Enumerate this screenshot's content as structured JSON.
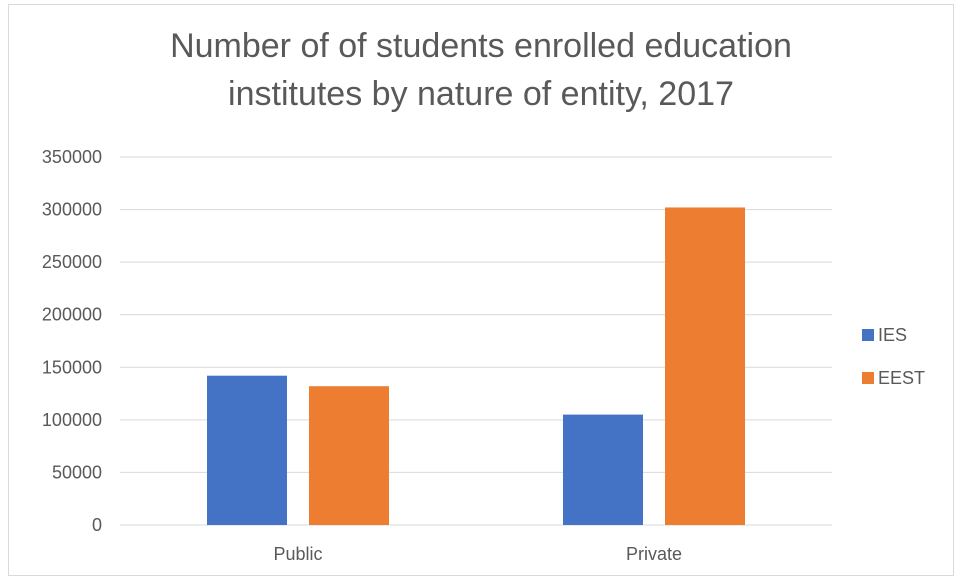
{
  "chart_data": {
    "type": "bar",
    "title_lines": [
      "Number of of students enrolled education",
      "institutes by nature of entity, 2017"
    ],
    "categories": [
      "Public",
      "Private"
    ],
    "series": [
      {
        "name": "IES",
        "values": [
          142000,
          105000
        ],
        "color": "#4472C4"
      },
      {
        "name": "EEST",
        "values": [
          132000,
          302000
        ],
        "color": "#ED7D31"
      }
    ],
    "ylim": [
      0,
      350000
    ],
    "yticks": [
      0,
      50000,
      100000,
      150000,
      200000,
      250000,
      300000,
      350000
    ],
    "grid": true,
    "legend_position": "right",
    "colors": {
      "grid": "#d9d9d9",
      "text": "#595959"
    }
  }
}
